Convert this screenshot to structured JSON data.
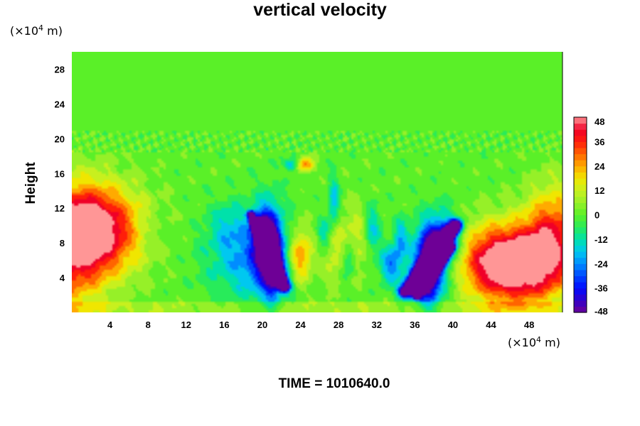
{
  "chart_data": {
    "type": "heatmap",
    "title": "vertical velocity",
    "xlabel": "",
    "ylabel": "Height",
    "x_unit": "(×10⁴ m)",
    "y_unit": "(×10⁴ m)",
    "xlim": [
      0,
      51.5
    ],
    "ylim": [
      0,
      30
    ],
    "x_ticks": [
      4,
      8,
      12,
      16,
      20,
      24,
      28,
      32,
      36,
      40,
      44,
      48
    ],
    "y_ticks": [
      4,
      8,
      12,
      16,
      20,
      24,
      28
    ],
    "colorbar": {
      "levels": [
        48,
        36,
        24,
        12,
        0,
        -12,
        -24,
        -36,
        -48
      ],
      "min": -48,
      "max": 48
    },
    "features": [
      {
        "x": 2.0,
        "y": 9.5,
        "sx": 3.5,
        "sy": 3.5,
        "value": 55
      },
      {
        "x": -1.0,
        "y": 6.0,
        "sx": 3.0,
        "sy": 5.0,
        "value": 25
      },
      {
        "x": 46.5,
        "y": 5.5,
        "sx": 3.0,
        "sy": 3.0,
        "value": 58
      },
      {
        "x": 50.5,
        "y": 8.5,
        "sx": 2.0,
        "sy": 4.0,
        "value": 35
      },
      {
        "x": 43.0,
        "y": 6.0,
        "sx": 2.5,
        "sy": 3.0,
        "value": 15
      },
      {
        "x": 24.0,
        "y": 6.5,
        "sx": 0.9,
        "sy": 2.2,
        "value": 32
      },
      {
        "x": 24.5,
        "y": 17.0,
        "sx": 0.6,
        "sy": 0.6,
        "value": 28
      },
      {
        "x": 27.5,
        "y": 7.5,
        "sx": 1.0,
        "sy": 3.0,
        "value": 14
      },
      {
        "x": 30.0,
        "y": 8.5,
        "sx": 1.0,
        "sy": 3.0,
        "value": 12
      },
      {
        "x": 19.0,
        "y": 6.0,
        "sx": 3.2,
        "sy": 3.0,
        "value": -22
      },
      {
        "x": 20.5,
        "y": 7.5,
        "sx": 1.2,
        "sy": 3.5,
        "value": -30
      },
      {
        "x": 21.0,
        "y": 6.5,
        "sx": 0.6,
        "sy": 3.0,
        "value": -40
      },
      {
        "x": 20.0,
        "y": 9.0,
        "sx": 0.5,
        "sy": 1.8,
        "value": -30
      },
      {
        "x": 37.5,
        "y": 5.5,
        "sx": 1.5,
        "sy": 3.0,
        "value": -30
      },
      {
        "x": 37.5,
        "y": 5.0,
        "sx": 0.8,
        "sy": 2.8,
        "value": -38
      },
      {
        "x": 39.0,
        "y": 8.5,
        "sx": 1.2,
        "sy": 2.0,
        "value": -30
      },
      {
        "x": 33.5,
        "y": 5.5,
        "sx": 0.8,
        "sy": 1.5,
        "value": -25
      },
      {
        "x": 27.5,
        "y": 12.5,
        "sx": 0.4,
        "sy": 2.0,
        "value": -22
      },
      {
        "x": 26.5,
        "y": 9.0,
        "sx": 0.5,
        "sy": 1.5,
        "value": -18
      },
      {
        "x": 29.0,
        "y": 6.0,
        "sx": 0.5,
        "sy": 1.5,
        "value": -18
      },
      {
        "x": 31.5,
        "y": 9.5,
        "sx": 0.6,
        "sy": 2.0,
        "value": -18
      },
      {
        "x": 34.5,
        "y": 8.5,
        "sx": 0.5,
        "sy": 1.5,
        "value": -18
      },
      {
        "x": 16.5,
        "y": 10.0,
        "sx": 1.5,
        "sy": 2.0,
        "value": -12
      },
      {
        "x": 8.5,
        "y": 9.5,
        "sx": 1.2,
        "sy": 1.2,
        "value": -6
      },
      {
        "x": 23.0,
        "y": 17.0,
        "sx": 0.5,
        "sy": 0.5,
        "value": -20
      }
    ],
    "streaks": [
      {
        "x0": 19.6,
        "y0": 10.0,
        "x1": 22.3,
        "y1": 3.0,
        "width": 0.45,
        "value": -70
      },
      {
        "x0": 18.8,
        "y0": 11.3,
        "x1": 21.3,
        "y1": 3.6,
        "width": 0.28,
        "value": -65
      },
      {
        "x0": 35.0,
        "y0": 2.4,
        "x1": 40.3,
        "y1": 10.0,
        "width": 0.5,
        "value": -70
      },
      {
        "x0": 36.2,
        "y0": 2.0,
        "x1": 39.8,
        "y1": 7.5,
        "width": 0.35,
        "value": -70
      }
    ]
  },
  "time_label": "TIME = 1010640.0"
}
